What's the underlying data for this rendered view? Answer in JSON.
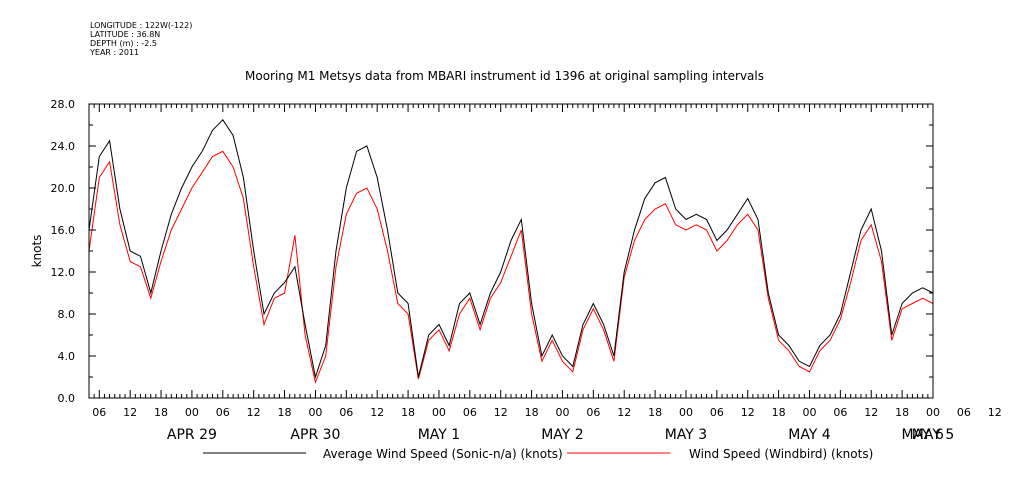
{
  "header": {
    "meta_lines": [
      "LONGITUDE : 122W(-122)",
      "LATITUDE : 36.8N",
      "DEPTH (m) : -2.5",
      "YEAR : 2011"
    ],
    "title": "Mooring M1 Metsys data from MBARI instrument id 1396 at original sampling intervals"
  },
  "chart_data": {
    "type": "line",
    "title": "Mooring M1 Metsys data from MBARI instrument id 1396 at original sampling intervals",
    "ylabel": "knots",
    "xlabel": "",
    "ylim": [
      0.0,
      28.0
    ],
    "yticks": [
      "0.0",
      "4.0",
      "8.0",
      "12.0",
      "16.0",
      "20.0",
      "24.0",
      "28.0"
    ],
    "x_unit": "hours since 2011-04-28 06:00",
    "xlim": [
      -2,
      162
    ],
    "hour_ticks": [
      "06",
      "12",
      "18",
      "00",
      "06",
      "12",
      "18",
      "00",
      "06",
      "12",
      "18",
      "00",
      "06",
      "12",
      "18",
      "00",
      "06",
      "12",
      "18",
      "00",
      "06",
      "12",
      "18",
      "00",
      "06",
      "12",
      "18",
      "00",
      "06",
      "12",
      "18",
      "00"
    ],
    "day_labels": [
      "APR 29",
      "APR 30",
      "MAY 1",
      "MAY 2",
      "MAY 3",
      "MAY 4",
      "MAY 5",
      "MAY 6"
    ],
    "grid": false,
    "legend_position": "bottom",
    "series": [
      {
        "name": "Average Wind Speed (Sonic-n/a) (knots)",
        "color": "#000000",
        "x": [
          -2,
          0,
          2,
          4,
          6,
          8,
          10,
          12,
          14,
          16,
          18,
          20,
          22,
          24,
          26,
          28,
          30,
          32,
          34,
          36,
          38,
          40,
          42,
          44,
          46,
          48,
          50,
          52,
          54,
          56,
          58,
          60,
          62,
          64,
          66,
          68,
          70,
          72,
          74,
          76,
          78,
          80,
          82,
          84,
          86,
          88,
          90,
          92,
          94,
          96,
          98,
          100,
          102,
          104,
          106,
          108,
          110,
          112,
          114,
          116,
          118,
          120,
          122,
          124,
          126,
          128,
          130,
          132,
          134,
          136,
          138,
          140,
          142,
          144,
          146,
          148,
          150,
          152,
          154,
          156,
          158,
          160,
          162
        ],
        "values": [
          16,
          23,
          24.5,
          18,
          14,
          13.5,
          10,
          14,
          17.5,
          20,
          22,
          23.5,
          25.5,
          26.5,
          25,
          21,
          14,
          8,
          10,
          11,
          12.5,
          7,
          2,
          5,
          14,
          20,
          23.5,
          24,
          21,
          16,
          10,
          9,
          2,
          6,
          7,
          5,
          9,
          10,
          7,
          10,
          12,
          15,
          17,
          9,
          4,
          6,
          4,
          3,
          7,
          9,
          7,
          4,
          12,
          16,
          19,
          20.5,
          21,
          18,
          17,
          17.5,
          17,
          15,
          16,
          17.5,
          19,
          17,
          10,
          6,
          5,
          3.5,
          3,
          5,
          6,
          8,
          12,
          16,
          18,
          14,
          6,
          9,
          10,
          10.5,
          10
        ]
      },
      {
        "name": "Wind Speed (Windbird) (knots)",
        "color": "#ff0000",
        "x": [
          -2,
          0,
          2,
          4,
          6,
          8,
          10,
          12,
          14,
          16,
          18,
          20,
          22,
          24,
          26,
          28,
          30,
          32,
          34,
          36,
          38,
          40,
          42,
          44,
          46,
          48,
          50,
          52,
          54,
          56,
          58,
          60,
          62,
          64,
          66,
          68,
          70,
          72,
          74,
          76,
          78,
          80,
          82,
          84,
          86,
          88,
          90,
          92,
          94,
          96,
          98,
          100,
          102,
          104,
          106,
          108,
          110,
          112,
          114,
          116,
          118,
          120,
          122,
          124,
          126,
          128,
          130,
          132,
          134,
          136,
          138,
          140,
          142,
          144,
          146,
          148,
          150,
          152,
          154,
          156,
          158,
          160,
          162
        ],
        "values": [
          14,
          21,
          22.5,
          16.5,
          13,
          12.5,
          9.5,
          13,
          16,
          18,
          20,
          21.5,
          23,
          23.5,
          22,
          19,
          12.5,
          7,
          9.5,
          10,
          15.5,
          6,
          1.5,
          4,
          12.5,
          17.5,
          19.5,
          20,
          18,
          14,
          9,
          8,
          1.8,
          5.5,
          6.5,
          4.5,
          8,
          9.5,
          6.5,
          9.5,
          11,
          13.5,
          16,
          8,
          3.5,
          5.5,
          3.5,
          2.5,
          6.5,
          8.5,
          6.5,
          3.5,
          11.5,
          15,
          17,
          18,
          18.5,
          16.5,
          16,
          16.5,
          16,
          14,
          15,
          16.5,
          17.5,
          16,
          9.5,
          5.5,
          4.5,
          3,
          2.5,
          4.5,
          5.5,
          7.5,
          11,
          15,
          16.5,
          13,
          5.5,
          8.5,
          9,
          9.5,
          9
        ]
      }
    ]
  }
}
